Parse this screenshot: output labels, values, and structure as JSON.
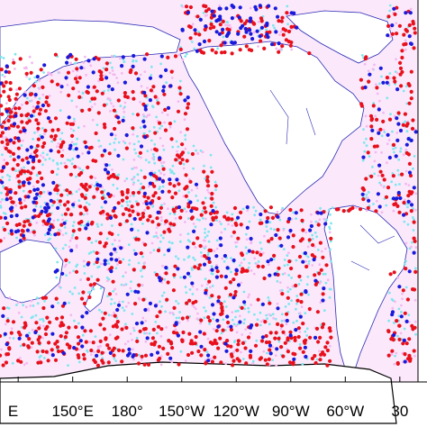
{
  "map": {
    "colors": {
      "red_obs": "#e8101c",
      "blue_obs": "#1a1adc",
      "cyan_obs": "#7fe6ee",
      "magenta_obs": "#f4b8f0",
      "coast": "#2a2ab4",
      "land": "#ffffff",
      "ocean_fill": "#fbe9fb",
      "frame": "#000000"
    },
    "lon_ticks": [
      "E",
      "150°E",
      "180°",
      "150°W",
      "120°W",
      "90°W",
      "60°W",
      "30"
    ],
    "lon_tick_values": [
      120,
      150,
      180,
      210,
      240,
      270,
      300,
      330
    ],
    "extent": {
      "lon_min": 110,
      "lon_max": 340,
      "lat_min": -80,
      "lat_max": 85
    }
  }
}
